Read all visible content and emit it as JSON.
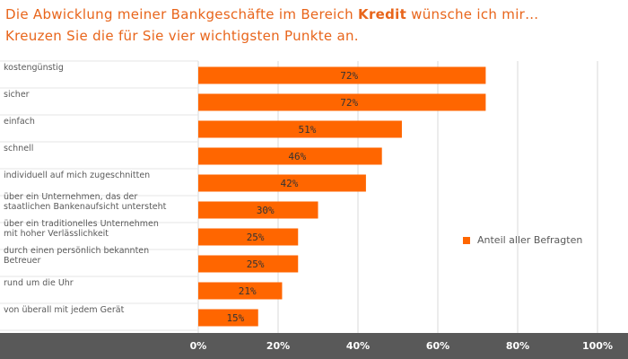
{
  "title": {
    "line1_prefix": "Die Abwicklung  meiner Bankgeschäfte  im Bereich ",
    "line1_bold": "Kredit",
    "line1_suffix": " wünsche ich mir…",
    "line2": "Kreuzen Sie die für Sie vier wichtigsten Punkte an."
  },
  "colors": {
    "bar": "#ff6600",
    "title": "#e8651b",
    "band": "#595959",
    "grid": "#d9d9d9",
    "text": "#595959"
  },
  "chart_data": {
    "type": "bar",
    "orientation": "horizontal",
    "categories": [
      [
        "kostengünstig"
      ],
      [
        "sicher"
      ],
      [
        "einfach"
      ],
      [
        "schnell"
      ],
      [
        "individuell  auf mich zugeschnitten"
      ],
      [
        "über ein Unternehmen,  das der",
        "staatlichen Bankenaufsicht untersteht"
      ],
      [
        "über ein traditionelles  Unternehmen",
        "mit hoher Verlässlichkeit"
      ],
      [
        "durch einen persönlich bekannten",
        "Betreuer"
      ],
      [
        "rund um die Uhr"
      ],
      [
        "von überall  mit jedem  Gerät"
      ]
    ],
    "series": [
      {
        "name": "Anteil aller Befragten",
        "values": [
          72,
          72,
          51,
          46,
          42,
          30,
          25,
          25,
          21,
          15
        ]
      }
    ],
    "data_labels": [
      "72%",
      "72%",
      "51%",
      "46%",
      "42%",
      "30%",
      "25%",
      "25%",
      "21%",
      "15%"
    ],
    "x_ticks": [
      "0%",
      "20%",
      "40%",
      "60%",
      "80%",
      "100%"
    ],
    "xlim": [
      0,
      100
    ],
    "grid": true,
    "legend_position": "right"
  }
}
